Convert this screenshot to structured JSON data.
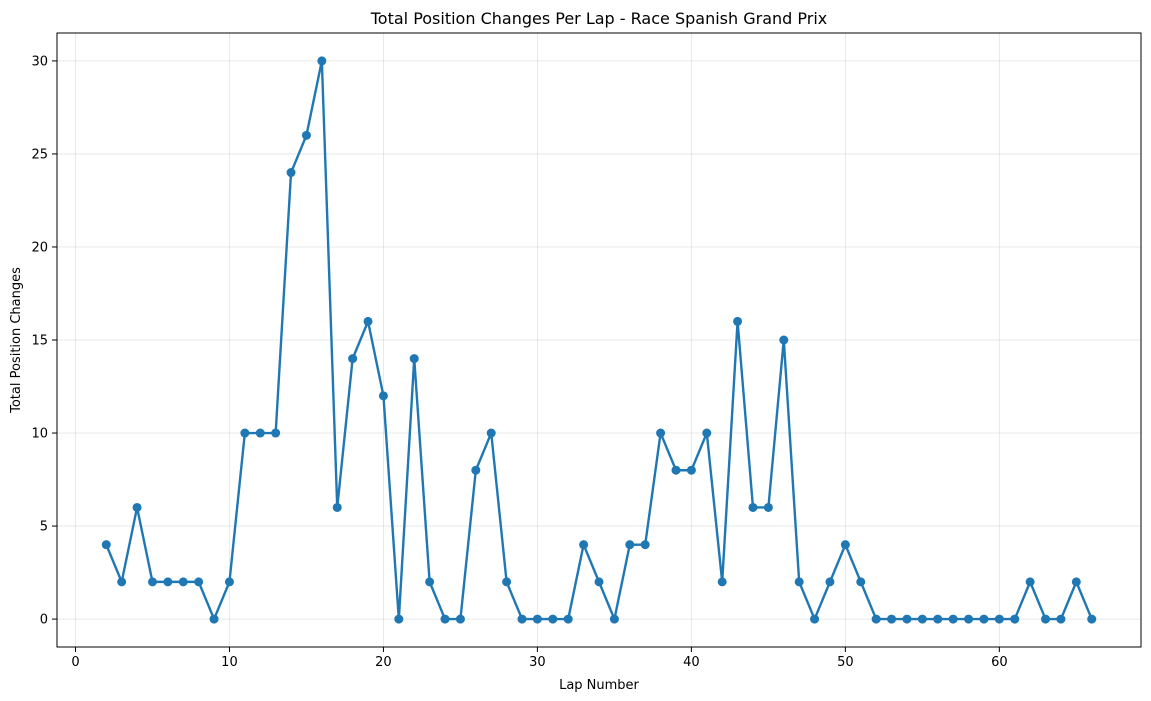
{
  "chart_data": {
    "type": "line",
    "title": "Total Position Changes Per Lap - Race Spanish Grand Prix",
    "xlabel": "Lap Number",
    "ylabel": "Total Position Changes",
    "xlim": [
      -1.2,
      69.2
    ],
    "ylim": [
      -1.5,
      31.5
    ],
    "xticks": [
      0,
      10,
      20,
      30,
      40,
      50,
      60
    ],
    "yticks": [
      0,
      5,
      10,
      15,
      20,
      25,
      30
    ],
    "grid": true,
    "series": [
      {
        "color": "#1f77b4",
        "marker": "circle",
        "x": [
          2,
          3,
          4,
          5,
          6,
          7,
          8,
          9,
          10,
          11,
          12,
          13,
          14,
          15,
          16,
          17,
          18,
          19,
          20,
          21,
          22,
          23,
          24,
          25,
          26,
          27,
          28,
          29,
          30,
          31,
          32,
          33,
          34,
          35,
          36,
          37,
          38,
          39,
          40,
          41,
          42,
          43,
          44,
          45,
          46,
          47,
          48,
          49,
          50,
          51,
          52,
          53,
          54,
          55,
          56,
          57,
          58,
          59,
          60,
          61,
          62,
          63,
          64,
          65,
          66
        ],
        "y": [
          4,
          2,
          6,
          2,
          2,
          2,
          2,
          0,
          2,
          10,
          10,
          10,
          24,
          26,
          30,
          6,
          14,
          16,
          12,
          0,
          14,
          2,
          0,
          0,
          8,
          10,
          2,
          0,
          0,
          0,
          0,
          4,
          2,
          0,
          4,
          4,
          10,
          8,
          8,
          10,
          2,
          16,
          6,
          6,
          15,
          2,
          0,
          2,
          4,
          2,
          0,
          0,
          0,
          0,
          0,
          0,
          0,
          0,
          0,
          0,
          2,
          0,
          0,
          2,
          0
        ]
      }
    ]
  }
}
